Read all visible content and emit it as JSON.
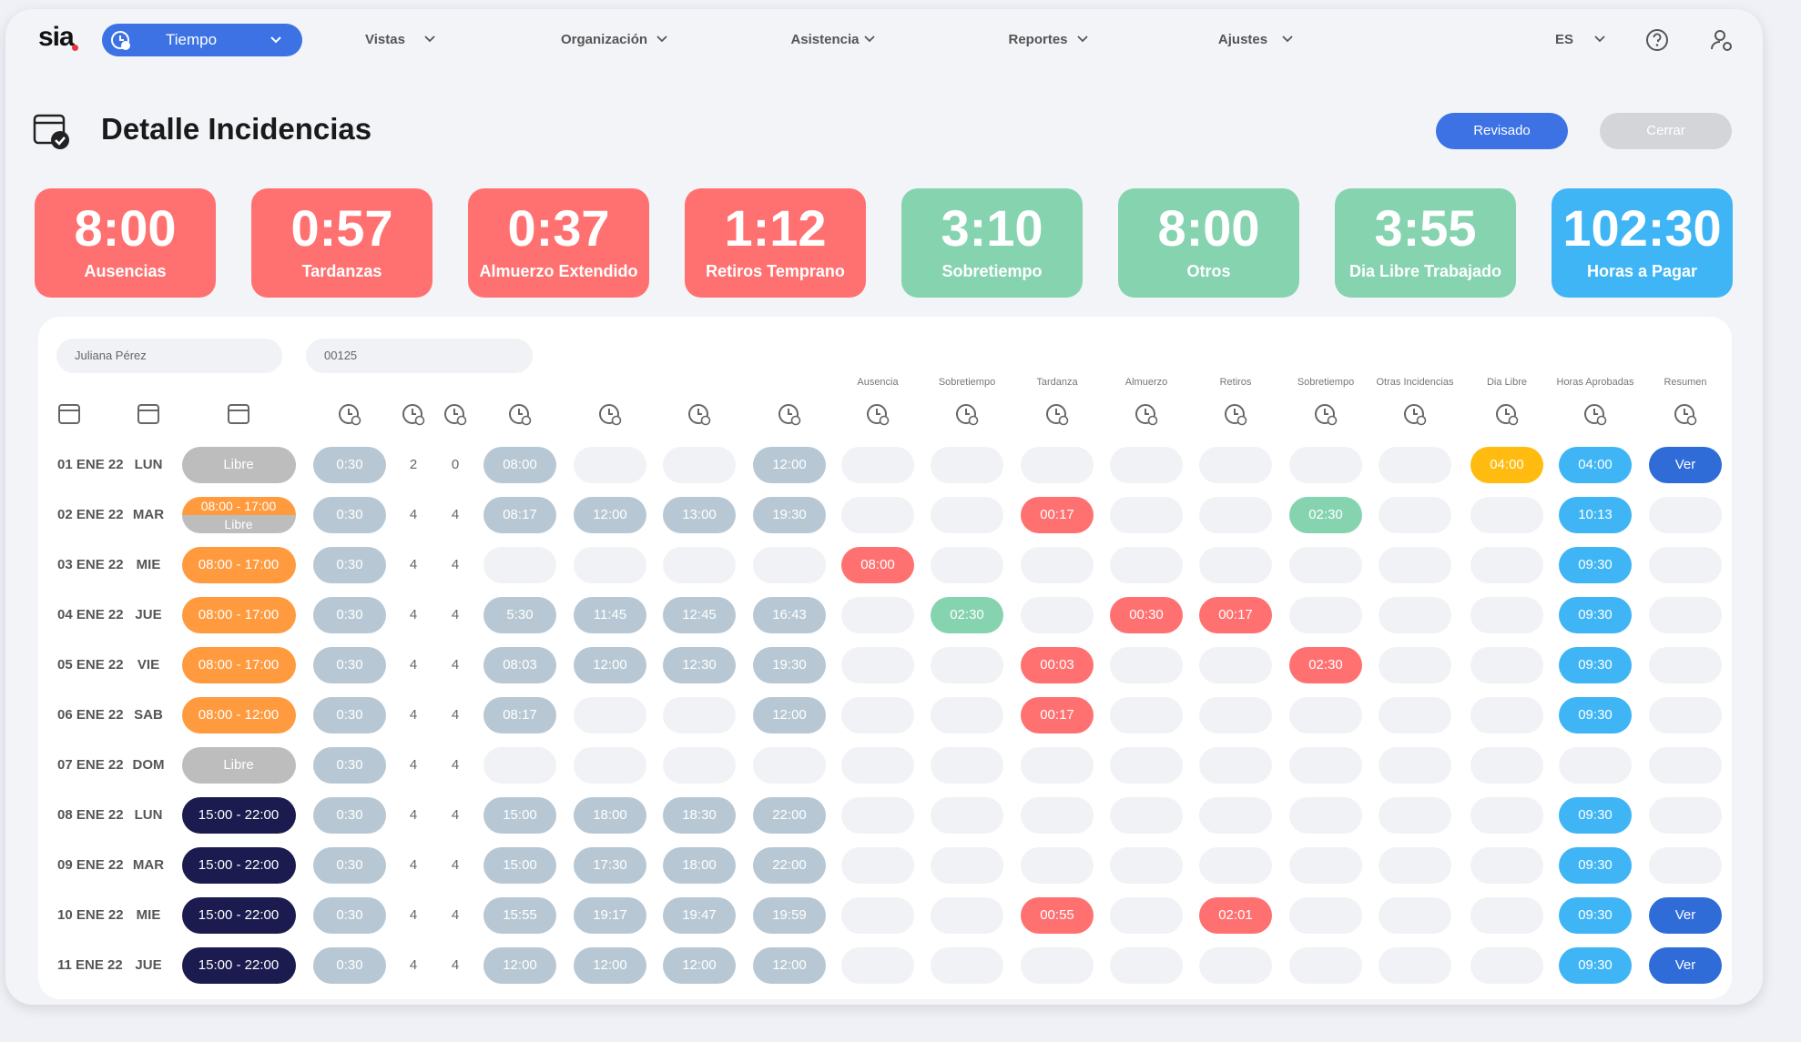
{
  "nav": {
    "logo": "sia",
    "module": "Tiempo",
    "menu": [
      "Vistas",
      "Organización",
      "Asistencia",
      "Reportes",
      "Ajustes"
    ],
    "lang": "ES"
  },
  "header": {
    "title": "Detalle Incidencias",
    "buttons": [
      "Revisado",
      "Cerrar"
    ]
  },
  "summary": [
    {
      "value": "8:00",
      "label": "Ausencias",
      "tone": "red"
    },
    {
      "value": "0:57",
      "label": "Tardanzas",
      "tone": "red"
    },
    {
      "value": "0:37",
      "label": "Almuerzo Extendido",
      "tone": "red"
    },
    {
      "value": "1:12",
      "label": "Retiros Temprano",
      "tone": "red"
    },
    {
      "value": "3:10",
      "label": "Sobretiempo",
      "tone": "green"
    },
    {
      "value": "8:00",
      "label": "Otros",
      "tone": "green"
    },
    {
      "value": "3:55",
      "label": "Dia Libre Trabajado",
      "tone": "green"
    },
    {
      "value": "102:30",
      "label": "Horas a Pagar",
      "tone": "blue"
    }
  ],
  "filters": {
    "employee": "Juliana Pérez",
    "code": "00125"
  },
  "table": {
    "group_headers": [
      "Ausencia",
      "Sobretiempo",
      "Tardanza",
      "Almuerzo",
      "Retiros",
      "Sobretiempo",
      "Otras Incidencias",
      "Dia Libre",
      "Horas Aprobadas",
      "Resumen"
    ],
    "rows": [
      {
        "date": "01 ENE 22",
        "day": "LUN",
        "shift": [
          {
            "text": "Libre",
            "tone": "gray"
          }
        ],
        "break": "0:30",
        "counts": [
          2,
          0
        ],
        "punches": [
          "08:00",
          null,
          null,
          "12:00"
        ],
        "incidences": [
          null,
          null,
          null,
          null,
          null,
          null,
          null,
          {
            "text": "04:00",
            "tone": "yellow"
          },
          {
            "text": "04:00",
            "tone": "blue"
          },
          {
            "text": "Ver",
            "tone": "navyblue"
          }
        ]
      },
      {
        "date": "02 ENE 22",
        "day": "MAR",
        "shift": [
          {
            "text": "08:00 - 17:00",
            "tone": "orange"
          },
          {
            "text": "Libre",
            "tone": "gray"
          }
        ],
        "break": "0:30",
        "counts": [
          4,
          4
        ],
        "punches": [
          "08:17",
          "12:00",
          "13:00",
          "19:30"
        ],
        "incidences": [
          null,
          null,
          {
            "text": "00:17",
            "tone": "red"
          },
          null,
          null,
          {
            "text": "02:30",
            "tone": "green"
          },
          null,
          null,
          {
            "text": "10:13",
            "tone": "blue"
          },
          null
        ]
      },
      {
        "date": "03 ENE 22",
        "day": "MIE",
        "shift": [
          {
            "text": "08:00 - 17:00",
            "tone": "orange"
          }
        ],
        "break": "0:30",
        "counts": [
          4,
          4
        ],
        "punches": [
          null,
          null,
          null,
          null
        ],
        "incidences": [
          {
            "text": "08:00",
            "tone": "red"
          },
          null,
          null,
          null,
          null,
          null,
          null,
          null,
          {
            "text": "09:30",
            "tone": "blue"
          },
          null
        ]
      },
      {
        "date": "04 ENE 22",
        "day": "JUE",
        "shift": [
          {
            "text": "08:00 - 17:00",
            "tone": "orange"
          }
        ],
        "break": "0:30",
        "counts": [
          4,
          4
        ],
        "punches": [
          "5:30",
          "11:45",
          "12:45",
          "16:43"
        ],
        "incidences": [
          null,
          {
            "text": "02:30",
            "tone": "green"
          },
          null,
          {
            "text": "00:30",
            "tone": "red"
          },
          {
            "text": "00:17",
            "tone": "red"
          },
          null,
          null,
          null,
          {
            "text": "09:30",
            "tone": "blue"
          },
          null
        ]
      },
      {
        "date": "05 ENE 22",
        "day": "VIE",
        "shift": [
          {
            "text": "08:00 - 17:00",
            "tone": "orange"
          }
        ],
        "break": "0:30",
        "counts": [
          4,
          4
        ],
        "punches": [
          "08:03",
          "12:00",
          "12:30",
          "19:30"
        ],
        "incidences": [
          null,
          null,
          {
            "text": "00:03",
            "tone": "red"
          },
          null,
          null,
          {
            "text": "02:30",
            "tone": "red"
          },
          null,
          null,
          {
            "text": "09:30",
            "tone": "blue"
          },
          null
        ]
      },
      {
        "date": "06 ENE 22",
        "day": "SAB",
        "shift": [
          {
            "text": "08:00 - 12:00",
            "tone": "orange"
          }
        ],
        "break": "0:30",
        "counts": [
          4,
          4
        ],
        "punches": [
          "08:17",
          null,
          null,
          "12:00"
        ],
        "incidences": [
          null,
          null,
          {
            "text": "00:17",
            "tone": "red"
          },
          null,
          null,
          null,
          null,
          null,
          {
            "text": "09:30",
            "tone": "blue"
          },
          null
        ]
      },
      {
        "date": "07 ENE 22",
        "day": "DOM",
        "shift": [
          {
            "text": "Libre",
            "tone": "gray"
          }
        ],
        "break": "0:30",
        "counts": [
          4,
          4
        ],
        "punches": [
          null,
          null,
          null,
          null
        ],
        "incidences": [
          null,
          null,
          null,
          null,
          null,
          null,
          null,
          null,
          null,
          null
        ]
      },
      {
        "date": "08 ENE 22",
        "day": "LUN",
        "shift": [
          {
            "text": "15:00 - 22:00",
            "tone": "navy"
          }
        ],
        "break": "0:30",
        "counts": [
          4,
          4
        ],
        "punches": [
          "15:00",
          "18:00",
          "18:30",
          "22:00"
        ],
        "incidences": [
          null,
          null,
          null,
          null,
          null,
          null,
          null,
          null,
          {
            "text": "09:30",
            "tone": "blue"
          },
          null
        ]
      },
      {
        "date": "09 ENE 22",
        "day": "MAR",
        "shift": [
          {
            "text": "15:00 - 22:00",
            "tone": "navy"
          }
        ],
        "break": "0:30",
        "counts": [
          4,
          4
        ],
        "punches": [
          "15:00",
          "17:30",
          "18:00",
          "22:00"
        ],
        "incidences": [
          null,
          null,
          null,
          null,
          null,
          null,
          null,
          null,
          {
            "text": "09:30",
            "tone": "blue"
          },
          null
        ]
      },
      {
        "date": "10 ENE 22",
        "day": "MIE",
        "shift": [
          {
            "text": "15:00 - 22:00",
            "tone": "navy"
          }
        ],
        "break": "0:30",
        "counts": [
          4,
          4
        ],
        "punches": [
          "15:55",
          "19:17",
          "19:47",
          "19:59"
        ],
        "incidences": [
          null,
          null,
          {
            "text": "00:55",
            "tone": "red"
          },
          null,
          {
            "text": "02:01",
            "tone": "red"
          },
          null,
          null,
          null,
          {
            "text": "09:30",
            "tone": "blue"
          },
          {
            "text": "Ver",
            "tone": "navyblue"
          }
        ]
      },
      {
        "date": "11 ENE 22",
        "day": "JUE",
        "shift": [
          {
            "text": "15:00 - 22:00",
            "tone": "navy"
          }
        ],
        "break": "0:30",
        "counts": [
          4,
          4
        ],
        "punches": [
          "12:00",
          "12:00",
          "12:00",
          "12:00"
        ],
        "incidences": [
          null,
          null,
          null,
          null,
          null,
          null,
          null,
          null,
          {
            "text": "09:30",
            "tone": "blue"
          },
          {
            "text": "Ver",
            "tone": "navyblue"
          }
        ]
      }
    ]
  }
}
